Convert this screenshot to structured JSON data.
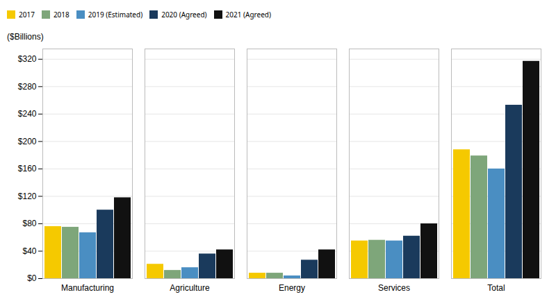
{
  "chart_data": {
    "type": "bar",
    "categories": [
      "Manufacturing",
      "Agriculture",
      "Energy",
      "Services",
      "Total"
    ],
    "series": [
      {
        "name": "2017",
        "color": "#F5C900",
        "values": [
          76,
          21,
          8,
          55,
          188
        ]
      },
      {
        "name": "2018",
        "color": "#7EA67A",
        "values": [
          75,
          12,
          8,
          56,
          179
        ]
      },
      {
        "name": "2019 (Estimated)",
        "color": "#4A8EC2",
        "values": [
          67,
          16,
          4,
          55,
          160
        ]
      },
      {
        "name": "2020 (Agreed)",
        "color": "#1A3A5C",
        "values": [
          100,
          36,
          27,
          62,
          253
        ]
      },
      {
        "name": "2021 (Agreed)",
        "color": "#111111",
        "values": [
          118,
          42,
          42,
          80,
          317
        ]
      }
    ],
    "ylabel": "($Billions)",
    "ylim": [
      0,
      335
    ],
    "yticks": [
      {
        "value": 0,
        "label": "$0"
      },
      {
        "value": 40,
        "label": "$40"
      },
      {
        "value": 80,
        "label": "$80"
      },
      {
        "value": 120,
        "label": "$120"
      },
      {
        "value": 160,
        "label": "$160"
      },
      {
        "value": 200,
        "label": "$200"
      },
      {
        "value": 240,
        "label": "$240"
      },
      {
        "value": 280,
        "label": "$280"
      },
      {
        "value": 320,
        "label": "$320"
      }
    ],
    "grid": true,
    "legend": "upper left"
  }
}
